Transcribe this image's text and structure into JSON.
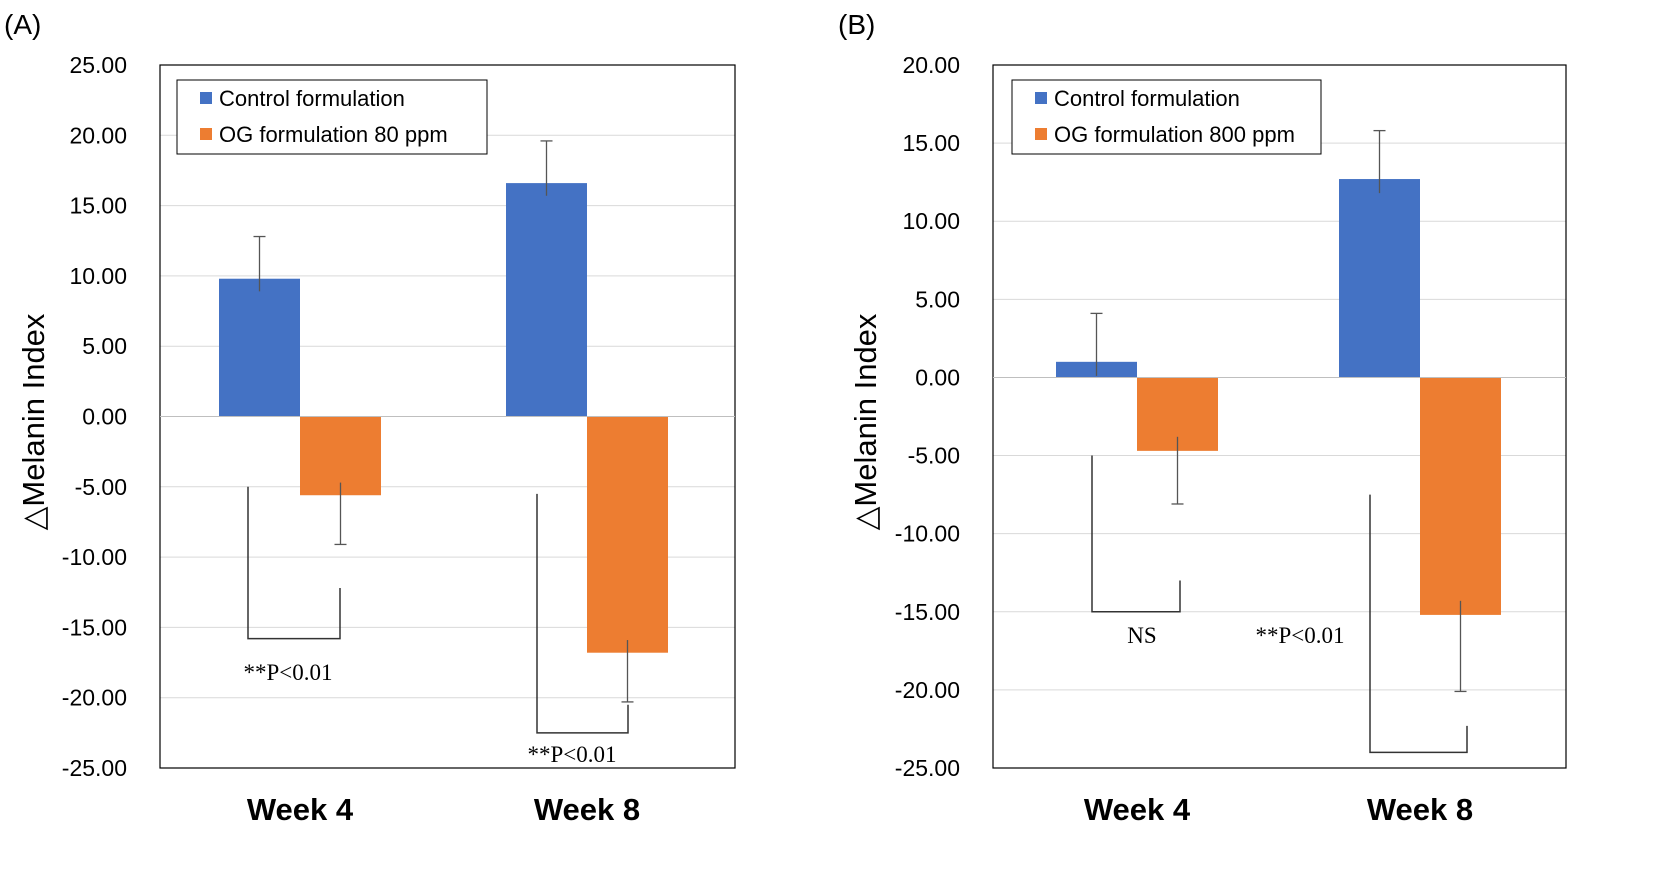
{
  "chart_data": [
    {
      "type": "bar",
      "panel_label": "(A)",
      "title": "",
      "xlabel": "",
      "ylabel": "△Melanin Index",
      "ylim": [
        -25,
        25
      ],
      "yticks": [
        "25.00",
        "20.00",
        "15.00",
        "10.00",
        "5.00",
        "0.00",
        "-5.00",
        "-10.00",
        "-15.00",
        "-20.00",
        "-25.00"
      ],
      "grid": true,
      "legend_position": "top-left",
      "categories": [
        "Week 4",
        "Week 8"
      ],
      "series": [
        {
          "name": "Control formulation",
          "color": "#4472C4",
          "values": [
            9.8,
            16.6
          ],
          "error": [
            3.0,
            3.0
          ]
        },
        {
          "name": "OG formulation 80 ppm",
          "color": "#ED7D31",
          "values": [
            -5.6,
            -16.8
          ],
          "error": [
            3.5,
            3.5
          ]
        }
      ],
      "annotations": [
        "**P<0.01",
        "**P<0.01"
      ]
    },
    {
      "type": "bar",
      "panel_label": "(B)",
      "title": "",
      "xlabel": "",
      "ylabel": "△Melanin Index",
      "ylim": [
        -25,
        20
      ],
      "yticks": [
        "20.00",
        "15.00",
        "10.00",
        "5.00",
        "0.00",
        "-5.00",
        "-10.00",
        "-15.00",
        "-20.00",
        "-25.00"
      ],
      "grid": true,
      "legend_position": "top-left",
      "categories": [
        "Week 4",
        "Week 8"
      ],
      "series": [
        {
          "name": "Control formulation",
          "color": "#4472C4",
          "values": [
            1.0,
            12.7
          ],
          "error": [
            3.1,
            3.1
          ]
        },
        {
          "name": "OG formulation 800 ppm",
          "color": "#ED7D31",
          "values": [
            -4.7,
            -15.2
          ],
          "error": [
            3.4,
            4.9
          ]
        }
      ],
      "annotations": [
        "NS",
        "**P<0.01"
      ]
    }
  ]
}
